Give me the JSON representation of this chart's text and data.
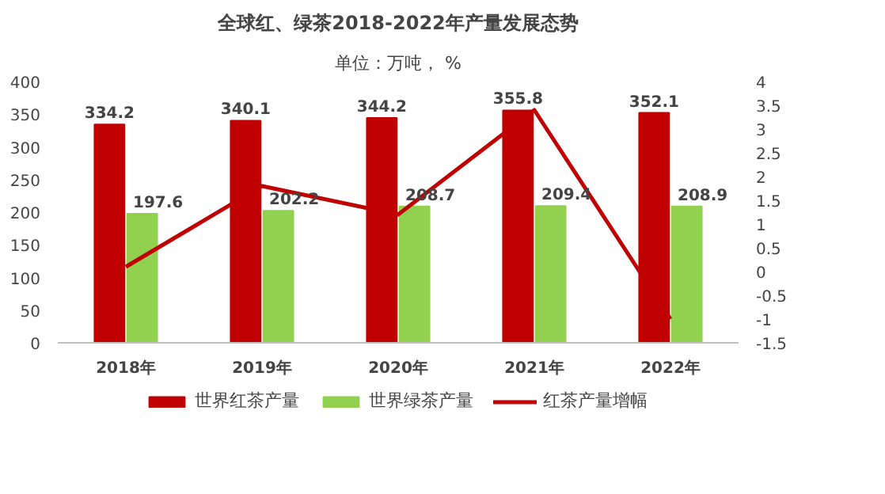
{
  "chart_data": {
    "type": "bar",
    "title": "全球红、绿茶2018-2022年产量发展态势",
    "subtitle": "单位：万吨， %",
    "categories": [
      "2018年",
      "2019年",
      "2020年",
      "2021年",
      "2022年"
    ],
    "series": [
      {
        "name": "世界红茶产量",
        "color": "#c00000",
        "values": [
          334.2,
          340.1,
          344.2,
          355.8,
          352.1
        ],
        "value_labels": [
          "334.2",
          "340.1",
          "344.2",
          "355.8",
          "352.1"
        ]
      },
      {
        "name": "世界绿茶产量",
        "color": "#92d050",
        "values": [
          197.6,
          202.2,
          208.7,
          209.4,
          208.9
        ],
        "value_labels": [
          "197.6",
          "202.2",
          "208.7",
          "209.4",
          "208.9"
        ]
      },
      {
        "name": "红茶产量增幅",
        "color": "#c00000",
        "type": "line",
        "axis": "y2",
        "values": [
          0.1,
          1.8,
          1.2,
          3.4,
          -1.0
        ]
      }
    ],
    "ylim": [
      0,
      400
    ],
    "yticks": [
      0,
      50,
      100,
      150,
      200,
      250,
      300,
      350,
      400
    ],
    "y2lim": [
      -1.5,
      4
    ],
    "y2ticks": [
      -1.5,
      -1,
      -0.5,
      0,
      0.5,
      1,
      1.5,
      2,
      2.5,
      3,
      3.5,
      4
    ],
    "grid": false,
    "legend": "bottom",
    "marker": "none",
    "line_style": "solid"
  }
}
